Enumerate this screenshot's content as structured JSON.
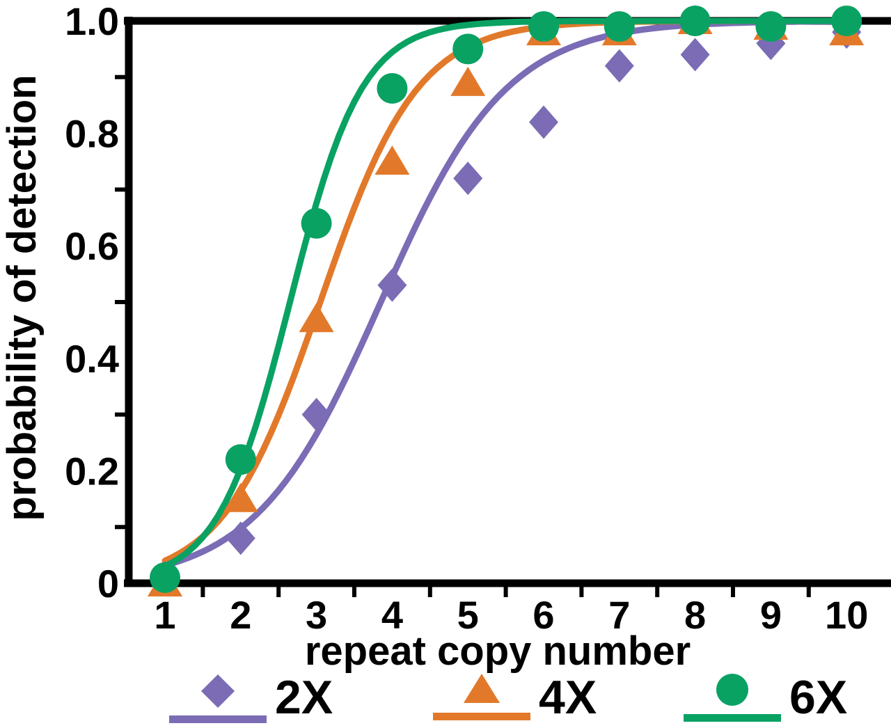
{
  "figure": {
    "background": "#ffffff",
    "axis_color": "#000000"
  },
  "chart_data": {
    "type": "scatter",
    "xlabel": "repeat copy number",
    "ylabel": "probability of detection",
    "xlim": [
      1,
      10
    ],
    "ylim": [
      0,
      1.0
    ],
    "x_ticks": [
      "1",
      "2",
      "3",
      "4",
      "5",
      "6",
      "7",
      "8",
      "9",
      "10"
    ],
    "y_ticks": [
      0,
      0.2,
      0.4,
      0.6,
      0.8,
      1.0
    ],
    "y_tick_labels": [
      "0",
      "0.2",
      "0.4",
      "0.6",
      "0.8",
      "1.0"
    ],
    "x": [
      1,
      2,
      3,
      4,
      5,
      6,
      7,
      8,
      9,
      10
    ],
    "grid": false,
    "legend_position": "bottom",
    "series": [
      {
        "name": "2X",
        "marker": "diamond",
        "color": "#7b6cb5",
        "values": [
          0.01,
          0.08,
          0.3,
          0.53,
          0.72,
          0.82,
          0.92,
          0.94,
          0.96,
          0.98
        ],
        "fit_curve": {
          "model": "logistic",
          "midpoint": 3.85,
          "slope": 1.2
        }
      },
      {
        "name": "4X",
        "marker": "triangle",
        "color": "#e2792a",
        "values": [
          0.0,
          0.15,
          0.47,
          0.75,
          0.89,
          0.98,
          0.98,
          1.0,
          0.99,
          0.98
        ],
        "fit_curve": {
          "model": "logistic",
          "midpoint": 3.05,
          "slope": 1.55
        }
      },
      {
        "name": "6X",
        "marker": "circle",
        "color": "#09a263",
        "values": [
          0.01,
          0.22,
          0.64,
          0.88,
          0.95,
          0.99,
          0.99,
          1.0,
          0.99,
          1.0
        ],
        "fit_curve": {
          "model": "logistic",
          "midpoint": 2.65,
          "slope": 2.1
        }
      }
    ]
  }
}
